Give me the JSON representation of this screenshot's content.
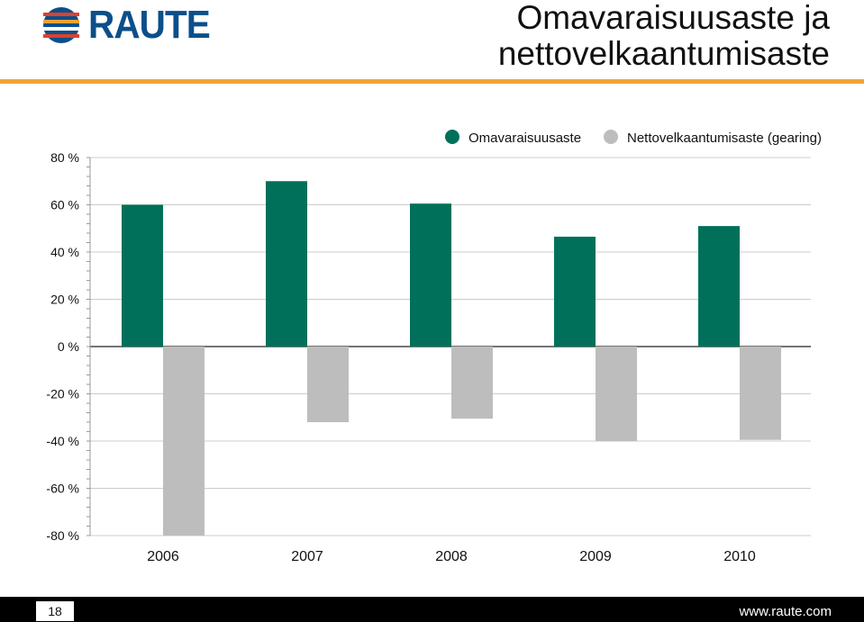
{
  "header": {
    "logo_text": "RAUTE",
    "title_line1": "Omavaraisuusaste ja",
    "title_line2": "nettovelkaantumisaste"
  },
  "footer": {
    "page_number": "18",
    "website": "www.raute.com"
  },
  "colors": {
    "accent_rule": "#f0a436",
    "logo_blue": "#0b4f8a",
    "series_equity": "#00705a",
    "series_gearing": "#bdbdbd"
  },
  "chart_data": {
    "type": "bar",
    "categories": [
      "2006",
      "2007",
      "2008",
      "2009",
      "2010"
    ],
    "series": [
      {
        "name": "Omavaraisuusaste",
        "values": [
          60,
          70,
          60.5,
          46.5,
          51
        ]
      },
      {
        "name": "Nettovelkaantumisaste (gearing)",
        "values": [
          -80,
          -32,
          -30.5,
          -40,
          -39.5
        ]
      }
    ],
    "yticks": [
      "80 %",
      "60 %",
      "40 %",
      "20 %",
      "0 %",
      "-20 %",
      "-40 %",
      "-60 %",
      "-80 %"
    ],
    "ylim": [
      -80,
      80
    ],
    "grid": true,
    "legend_position": "top"
  }
}
